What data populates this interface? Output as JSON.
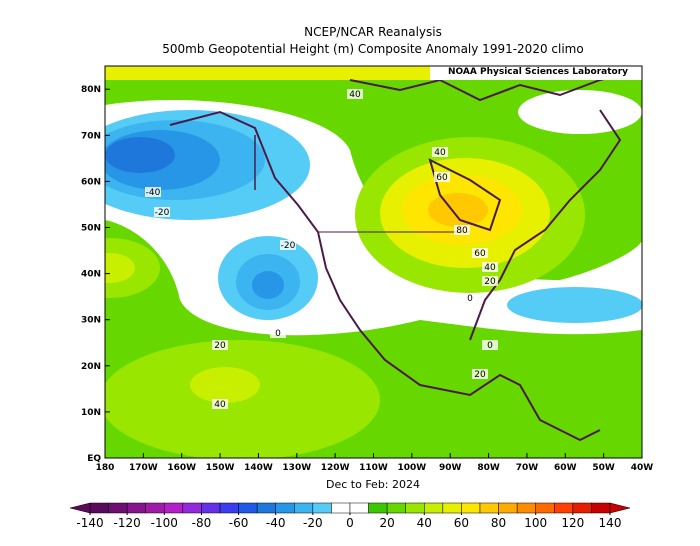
{
  "title": "NCEP/NCAR Reanalysis",
  "subtitle": "500mb Geopotential Height (m) Composite Anomaly 1991-2020 climo",
  "credit": "NOAA Physical Sciences Laboratory",
  "x_ticks": [
    "180",
    "170W",
    "160W",
    "150W",
    "140W",
    "130W",
    "120W",
    "110W",
    "100W",
    "90W",
    "80W",
    "70W",
    "60W",
    "50W",
    "40W"
  ],
  "y_ticks": [
    "EQ",
    "10N",
    "20N",
    "30N",
    "40N",
    "50N",
    "60N",
    "70N",
    "80N"
  ],
  "x_label": "Dec to Feb: 2024",
  "contour_labels": [
    "40",
    "40",
    "60",
    "80",
    "60",
    "40",
    "20",
    "0",
    "-40",
    "-20",
    "-20",
    "0",
    "20",
    "20",
    "40",
    "0"
  ],
  "colorbar": {
    "ticks": [
      -140,
      -120,
      -100,
      -80,
      -60,
      -40,
      -20,
      0,
      20,
      40,
      60,
      80,
      100,
      120,
      140
    ],
    "colors": [
      "#5a0a5a",
      "#6e0e73",
      "#87148c",
      "#a01aa8",
      "#b41ec8",
      "#9628dc",
      "#6432e6",
      "#3c3cf0",
      "#1e5ae6",
      "#1e78dc",
      "#2896e6",
      "#3cb4f0",
      "#55ccf5",
      "#ffffff",
      "#ffffff",
      "#3cc800",
      "#66d800",
      "#99e600",
      "#c8ee00",
      "#e6f000",
      "#ffe600",
      "#ffc800",
      "#ffaa00",
      "#ff8c00",
      "#ff6a00",
      "#ff4000",
      "#e61e00",
      "#c80000"
    ]
  }
}
